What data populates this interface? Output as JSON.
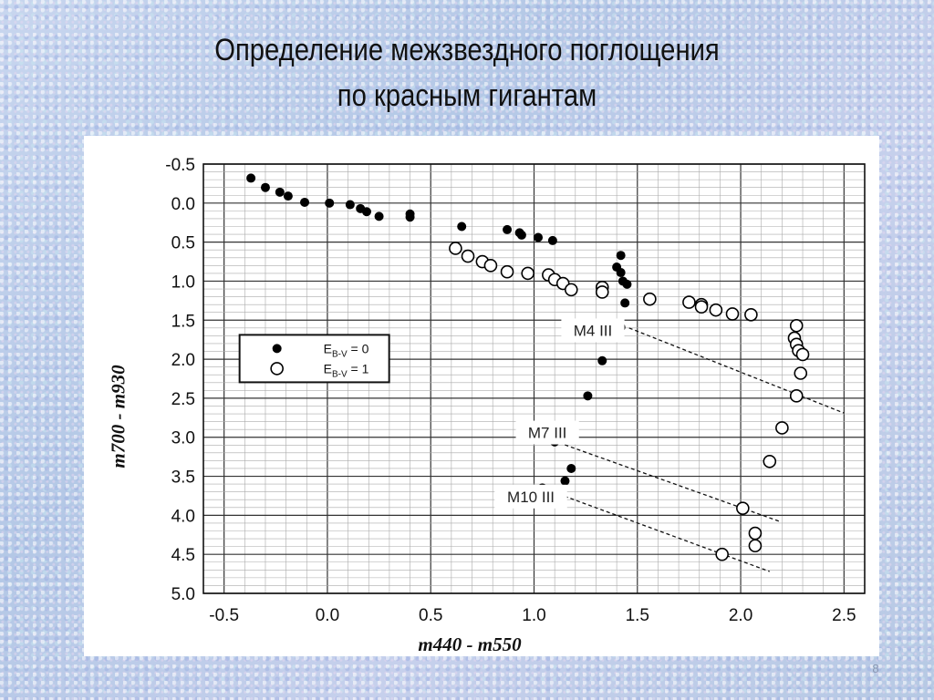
{
  "slide": {
    "title_line1": "Определение межзвездного поглощения",
    "title_line2": "по красным гигантам",
    "page_number": "8"
  },
  "chart_data": {
    "type": "scatter",
    "title": "",
    "xlabel": "m440 - m550",
    "ylabel": "m700 - m930",
    "xlim": [
      -0.6,
      2.6
    ],
    "ylim": [
      -0.5,
      5.0
    ],
    "y_inverted": true,
    "grid": true,
    "x_ticks": [
      -0.5,
      0.0,
      0.5,
      1.0,
      1.5,
      2.0,
      2.5
    ],
    "x_tick_labels": [
      "-0.5",
      "0.0",
      "0.5",
      "1.0",
      "1.5",
      "2.0",
      "2.5"
    ],
    "y_ticks": [
      -0.5,
      0.0,
      0.5,
      1.0,
      1.5,
      2.0,
      2.5,
      3.0,
      3.5,
      4.0,
      4.5,
      5.0
    ],
    "y_tick_labels": [
      "-0.5",
      "0.0",
      "0.5",
      "1.0",
      "1.5",
      "2.0",
      "2.5",
      "3.0",
      "3.5",
      "4.0",
      "4.5",
      "5.0"
    ],
    "legend_position": "middle-left",
    "legend": [
      {
        "marker": "filled-circle",
        "label_main": "E",
        "label_sub": "B-V",
        "label_rest": " = 0"
      },
      {
        "marker": "open-circle",
        "label_main": "E",
        "label_sub": "B-V",
        "label_rest": " = 1"
      }
    ],
    "series": [
      {
        "marker": "filled-circle",
        "color": "#000000",
        "points": [
          [
            -0.37,
            -0.32
          ],
          [
            -0.3,
            -0.2
          ],
          [
            -0.23,
            -0.14
          ],
          [
            -0.19,
            -0.09
          ],
          [
            -0.11,
            -0.01
          ],
          [
            0.01,
            0.0
          ],
          [
            0.11,
            0.02
          ],
          [
            0.16,
            0.07
          ],
          [
            0.19,
            0.11
          ],
          [
            0.25,
            0.17
          ],
          [
            0.4,
            0.14
          ],
          [
            0.4,
            0.18
          ],
          [
            0.65,
            0.3
          ],
          [
            0.87,
            0.34
          ],
          [
            0.93,
            0.38
          ],
          [
            0.94,
            0.41
          ],
          [
            1.02,
            0.44
          ],
          [
            1.09,
            0.48
          ],
          [
            1.42,
            0.67
          ],
          [
            1.4,
            0.82
          ],
          [
            1.42,
            0.89
          ],
          [
            1.43,
            1.0
          ],
          [
            1.45,
            1.04
          ],
          [
            1.44,
            1.28
          ],
          [
            1.42,
            1.59
          ],
          [
            1.33,
            2.02
          ],
          [
            1.26,
            2.47
          ],
          [
            1.1,
            3.06
          ],
          [
            1.18,
            3.4
          ],
          [
            1.15,
            3.56
          ],
          [
            1.04,
            3.65
          ]
        ]
      },
      {
        "marker": "open-circle",
        "color": "#000000",
        "points": [
          [
            0.62,
            0.58
          ],
          [
            0.68,
            0.68
          ],
          [
            0.75,
            0.75
          ],
          [
            0.79,
            0.8
          ],
          [
            0.87,
            0.88
          ],
          [
            0.97,
            0.9
          ],
          [
            1.07,
            0.92
          ],
          [
            1.1,
            0.98
          ],
          [
            1.14,
            1.03
          ],
          [
            1.18,
            1.11
          ],
          [
            1.33,
            1.08
          ],
          [
            1.33,
            1.14
          ],
          [
            1.56,
            1.23
          ],
          [
            1.75,
            1.27
          ],
          [
            1.81,
            1.3
          ],
          [
            1.81,
            1.33
          ],
          [
            1.88,
            1.37
          ],
          [
            1.96,
            1.42
          ],
          [
            2.05,
            1.43
          ],
          [
            2.27,
            1.57
          ],
          [
            2.26,
            1.73
          ],
          [
            2.27,
            1.81
          ],
          [
            2.28,
            1.89
          ],
          [
            2.3,
            1.94
          ],
          [
            2.29,
            2.18
          ],
          [
            2.27,
            2.47
          ],
          [
            2.2,
            2.88
          ],
          [
            2.14,
            3.31
          ],
          [
            2.01,
            3.91
          ],
          [
            2.07,
            4.23
          ],
          [
            2.07,
            4.39
          ],
          [
            1.91,
            4.5
          ]
        ]
      }
    ],
    "annotations": [
      {
        "text": "M4 III",
        "at": [
          1.32,
          1.63
        ]
      },
      {
        "text": "M7 III",
        "at": [
          1.1,
          2.94
        ]
      },
      {
        "text": "M10 III",
        "at": [
          1.02,
          3.76
        ]
      }
    ],
    "reference_lines": [
      {
        "name": "M4 III",
        "style": "dashed",
        "from": [
          1.46,
          1.6
        ],
        "to": [
          2.5,
          2.69
        ]
      },
      {
        "name": "M7 III",
        "style": "dashed",
        "from": [
          1.12,
          3.07
        ],
        "to": [
          2.19,
          4.08
        ]
      },
      {
        "name": "M10 III",
        "style": "dashed",
        "from": [
          1.06,
          3.67
        ],
        "to": [
          2.14,
          4.72
        ]
      }
    ]
  }
}
